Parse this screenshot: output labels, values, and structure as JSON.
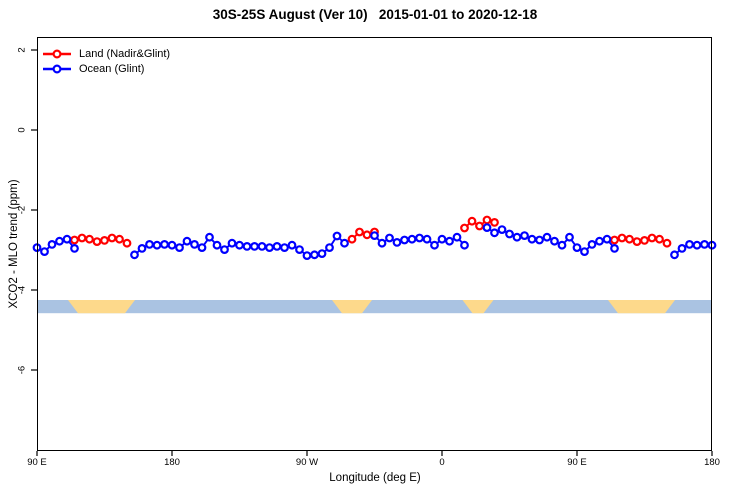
{
  "title": "30S-25S August (Ver 10)   2015-01-01 to 2020-12-18",
  "legend": {
    "items": [
      {
        "label": "Land (Nadir&Glint)",
        "color": "#ff0000"
      },
      {
        "label": "Ocean (Glint)",
        "color": "#0000ff"
      }
    ]
  },
  "axes": {
    "x": {
      "label": "Longitude (deg E)",
      "ticks": [
        {
          "lon": 90,
          "label": "90 E"
        },
        {
          "lon": 180,
          "label": "180"
        },
        {
          "lon": 270,
          "label": "90 W"
        },
        {
          "lon": 360,
          "label": "0"
        },
        {
          "lon": 450,
          "label": "90 E"
        },
        {
          "lon": 540,
          "label": "180"
        }
      ]
    },
    "y": {
      "label": "XCO2 - MLO trend (ppm)",
      "ticks": [
        {
          "value": 2,
          "label": "2"
        },
        {
          "value": 0,
          "label": "0"
        },
        {
          "value": -2,
          "label": "-2"
        },
        {
          "value": -4,
          "label": "-4"
        },
        {
          "value": -6,
          "label": "-6"
        }
      ]
    }
  },
  "chart_data": {
    "type": "line",
    "title": "30S-25S August (Ver 10)   2015-01-01 to 2020-12-18",
    "xlabel": "Longitude (deg E)",
    "ylabel": "XCO2 - MLO trend (ppm)",
    "x_axis_note": "x is longitude in continuous deg E from 90 to 540 (90E -> 180 -> 90W -> 0 -> 90E -> 180)",
    "marker": "open-circle",
    "grid": false,
    "legend_position": "top-left-inside",
    "series": [
      {
        "name": "Land (Nadir&Glint)",
        "color": "#ff0000",
        "segments": [
          [
            [
              115,
              -2.75
            ],
            [
              120,
              -2.7
            ],
            [
              125,
              -2.73
            ],
            [
              130,
              -2.79
            ],
            [
              135,
              -2.76
            ],
            [
              140,
              -2.7
            ],
            [
              145,
              -2.73
            ],
            [
              150,
              -2.83
            ]
          ],
          [
            [
              300,
              -2.73
            ],
            [
              305,
              -2.55
            ],
            [
              310,
              -2.62
            ],
            [
              315,
              -2.55
            ]
          ],
          [
            [
              375,
              -2.45
            ],
            [
              380,
              -2.28
            ],
            [
              385,
              -2.4
            ],
            [
              390,
              -2.25
            ],
            [
              395,
              -2.31
            ]
          ],
          [
            [
              475,
              -2.75
            ],
            [
              480,
              -2.7
            ],
            [
              485,
              -2.73
            ],
            [
              490,
              -2.79
            ],
            [
              495,
              -2.76
            ],
            [
              500,
              -2.7
            ],
            [
              505,
              -2.73
            ],
            [
              510,
              -2.83
            ]
          ]
        ]
      },
      {
        "name": "Ocean (Glint)",
        "color": "#0000ff",
        "segments": [
          [
            [
              90,
              -2.94
            ],
            [
              95,
              -3.04
            ],
            [
              100,
              -2.86
            ],
            [
              105,
              -2.78
            ],
            [
              110,
              -2.73
            ],
            [
              115,
              -2.96
            ]
          ],
          [
            [
              155,
              -3.12
            ],
            [
              160,
              -2.96
            ],
            [
              165,
              -2.86
            ],
            [
              170,
              -2.88
            ],
            [
              175,
              -2.86
            ],
            [
              180,
              -2.88
            ],
            [
              185,
              -2.94
            ],
            [
              190,
              -2.78
            ],
            [
              195,
              -2.86
            ],
            [
              200,
              -2.94
            ],
            [
              205,
              -2.68
            ],
            [
              210,
              -2.88
            ],
            [
              215,
              -2.99
            ],
            [
              220,
              -2.83
            ],
            [
              225,
              -2.88
            ],
            [
              230,
              -2.91
            ],
            [
              235,
              -2.91
            ],
            [
              240,
              -2.91
            ],
            [
              245,
              -2.94
            ],
            [
              250,
              -2.91
            ],
            [
              255,
              -2.94
            ],
            [
              260,
              -2.88
            ],
            [
              265,
              -2.99
            ],
            [
              270,
              -3.14
            ],
            [
              275,
              -3.12
            ],
            [
              280,
              -3.09
            ],
            [
              285,
              -2.94
            ],
            [
              290,
              -2.65
            ],
            [
              295,
              -2.83
            ]
          ],
          [
            [
              315,
              -2.64
            ],
            [
              320,
              -2.83
            ],
            [
              325,
              -2.7
            ],
            [
              330,
              -2.81
            ],
            [
              335,
              -2.75
            ],
            [
              340,
              -2.73
            ],
            [
              345,
              -2.7
            ],
            [
              350,
              -2.73
            ],
            [
              355,
              -2.88
            ],
            [
              360,
              -2.73
            ],
            [
              365,
              -2.78
            ],
            [
              370,
              -2.68
            ],
            [
              375,
              -2.88
            ]
          ],
          [
            [
              390,
              -2.44
            ],
            [
              395,
              -2.57
            ],
            [
              400,
              -2.49
            ],
            [
              405,
              -2.6
            ],
            [
              410,
              -2.68
            ],
            [
              415,
              -2.64
            ],
            [
              420,
              -2.73
            ],
            [
              425,
              -2.75
            ],
            [
              430,
              -2.68
            ],
            [
              435,
              -2.78
            ],
            [
              440,
              -2.88
            ],
            [
              445,
              -2.68
            ],
            [
              450,
              -2.94
            ],
            [
              455,
              -3.04
            ],
            [
              460,
              -2.86
            ],
            [
              465,
              -2.78
            ],
            [
              470,
              -2.73
            ],
            [
              475,
              -2.96
            ]
          ],
          [
            [
              515,
              -3.12
            ],
            [
              520,
              -2.96
            ],
            [
              525,
              -2.86
            ],
            [
              530,
              -2.88
            ],
            [
              535,
              -2.86
            ],
            [
              540,
              -2.88
            ]
          ]
        ]
      }
    ],
    "land_ocean_strip": {
      "description": "horizontal land/ocean map strip",
      "y_range_ppm": [
        -4.58,
        -4.25
      ],
      "ocean_color": "#aac3e2",
      "land_color": "#fdd98b",
      "land_segments_lon": [
        [
          114,
          152
        ],
        [
          290,
          310
        ],
        [
          377,
          391
        ],
        [
          474,
          512
        ]
      ]
    },
    "xlim": [
      90,
      540
    ],
    "ylim_ticks": [
      -6,
      2
    ]
  },
  "colors": {
    "land": "#ff0000",
    "ocean": "#0000ff",
    "strip_ocean": "#aac3e2",
    "strip_land": "#fdd98b",
    "axis": "#000000"
  }
}
